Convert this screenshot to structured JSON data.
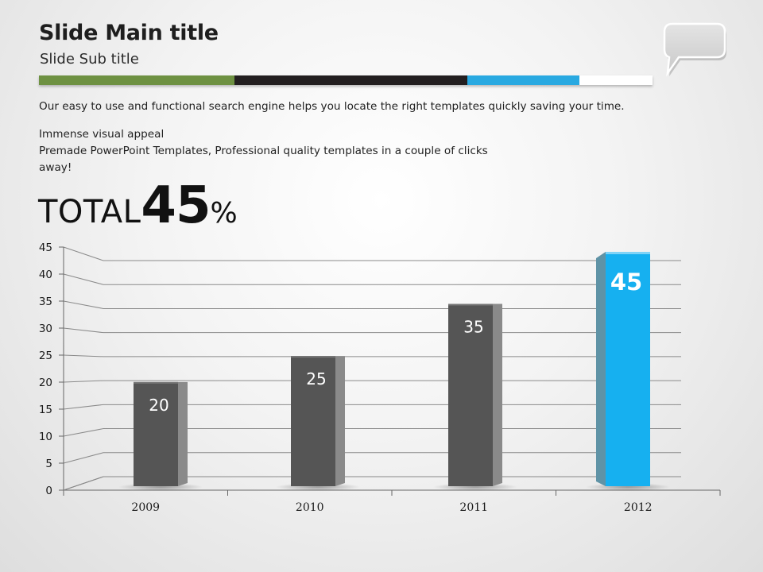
{
  "header": {
    "title": "Slide Main title",
    "subtitle": "Slide Sub title"
  },
  "colors": {
    "green": "#6e9142",
    "black": "#231f20",
    "blue": "#29a9e1",
    "white": "#ffffff",
    "bar": "#555555",
    "highlight": "#16b0f0"
  },
  "body": {
    "intro": "Our easy to use and functional search engine helps you locate the right templates quickly saving your time.",
    "lines": [
      "Immense visual appeal",
      "Premade PowerPoint Templates, Professional quality templates in a couple of clicks",
      "away!"
    ]
  },
  "total": {
    "label": "TOTAL",
    "value": "45",
    "unit": "%"
  },
  "icons": {
    "speech_bubble": "speech-bubble-icon"
  },
  "chart_data": {
    "type": "bar",
    "categories": [
      "2009",
      "2010",
      "2011",
      "2012"
    ],
    "values": [
      20,
      25,
      35,
      45
    ],
    "data_labels": [
      "20",
      "25",
      "35",
      "45"
    ],
    "highlight_index": 3,
    "title": "",
    "xlabel": "",
    "ylabel": "",
    "ylim": [
      0,
      45
    ],
    "yticks": [
      "0",
      "5",
      "10",
      "15",
      "20",
      "25",
      "30",
      "35",
      "40",
      "45"
    ],
    "grid": true
  }
}
